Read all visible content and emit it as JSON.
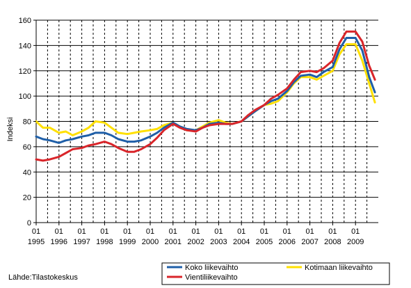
{
  "chart_data": {
    "type": "line",
    "ylabel": "Indeksi",
    "ylim": [
      0,
      160
    ],
    "yticks": [
      0,
      20,
      40,
      60,
      80,
      100,
      120,
      140,
      160
    ],
    "xticks": [
      {
        "year": 1995,
        "top": "01",
        "bottom": "1995"
      },
      {
        "year": 1996,
        "top": "01",
        "bottom": "1996"
      },
      {
        "year": 1997,
        "top": "01",
        "bottom": "1997"
      },
      {
        "year": 1998,
        "top": "01",
        "bottom": "1998"
      },
      {
        "year": 1999,
        "top": "01",
        "bottom": "1999"
      },
      {
        "year": 2000,
        "top": "01",
        "bottom": "2000"
      },
      {
        "year": 2001,
        "top": "01",
        "bottom": "2001"
      },
      {
        "year": 2002,
        "top": "01",
        "bottom": "2002"
      },
      {
        "year": 2003,
        "top": "01",
        "bottom": "2003"
      },
      {
        "year": 2004,
        "top": "01",
        "bottom": "2004"
      },
      {
        "year": 2005,
        "top": "01",
        "bottom": "2005"
      },
      {
        "year": 2006,
        "top": "01",
        "bottom": "2006"
      },
      {
        "year": 2007,
        "top": "01",
        "bottom": "2007"
      },
      {
        "year": 2008,
        "top": "01",
        "bottom": "2008"
      },
      {
        "year": 2009,
        "top": "01",
        "bottom": "2009"
      }
    ],
    "xlim": [
      1995.0,
      2010.0
    ],
    "grid": {
      "horizontal": true,
      "vertical_dashed": true
    },
    "legend_position": "bottom-right",
    "series": [
      {
        "name": "Kotimaan liikevaihto",
        "color": "#ffe000",
        "points": [
          [
            1995.0,
            80
          ],
          [
            1995.3,
            75
          ],
          [
            1995.6,
            75
          ],
          [
            1996.0,
            71
          ],
          [
            1996.3,
            72
          ],
          [
            1996.6,
            69
          ],
          [
            1997.0,
            72
          ],
          [
            1997.3,
            75
          ],
          [
            1997.6,
            80
          ],
          [
            1998.0,
            79
          ],
          [
            1998.3,
            75
          ],
          [
            1998.6,
            71
          ],
          [
            1999.0,
            70
          ],
          [
            1999.3,
            71
          ],
          [
            1999.6,
            72
          ],
          [
            2000.0,
            73
          ],
          [
            2000.3,
            74
          ],
          [
            2000.6,
            77
          ],
          [
            2001.0,
            79
          ],
          [
            2001.3,
            76
          ],
          [
            2001.6,
            73
          ],
          [
            2002.0,
            73
          ],
          [
            2002.3,
            76
          ],
          [
            2002.6,
            79
          ],
          [
            2003.0,
            81
          ],
          [
            2003.3,
            79
          ],
          [
            2003.6,
            78
          ],
          [
            2004.0,
            80
          ],
          [
            2004.3,
            84
          ],
          [
            2004.6,
            88
          ],
          [
            2005.0,
            93
          ],
          [
            2005.3,
            94
          ],
          [
            2005.6,
            96
          ],
          [
            2006.0,
            103
          ],
          [
            2006.3,
            110
          ],
          [
            2006.6,
            115
          ],
          [
            2007.0,
            115
          ],
          [
            2007.3,
            113
          ],
          [
            2007.6,
            116
          ],
          [
            2008.0,
            120
          ],
          [
            2008.3,
            133
          ],
          [
            2008.6,
            141
          ],
          [
            2009.0,
            141
          ],
          [
            2009.3,
            128
          ],
          [
            2009.6,
            110
          ],
          [
            2009.85,
            95
          ]
        ]
      },
      {
        "name": "Koko liikevaihto",
        "color": "#1f5fa8",
        "points": [
          [
            1995.0,
            68
          ],
          [
            1995.3,
            66
          ],
          [
            1995.6,
            65
          ],
          [
            1996.0,
            63
          ],
          [
            1996.3,
            65
          ],
          [
            1996.6,
            66
          ],
          [
            1997.0,
            68
          ],
          [
            1997.3,
            69
          ],
          [
            1997.6,
            71
          ],
          [
            1998.0,
            71
          ],
          [
            1998.3,
            69
          ],
          [
            1998.6,
            66
          ],
          [
            1999.0,
            64
          ],
          [
            1999.3,
            64
          ],
          [
            1999.6,
            65
          ],
          [
            2000.0,
            68
          ],
          [
            2000.3,
            71
          ],
          [
            2000.6,
            75
          ],
          [
            2001.0,
            79
          ],
          [
            2001.3,
            76
          ],
          [
            2001.6,
            74
          ],
          [
            2002.0,
            73
          ],
          [
            2002.3,
            75
          ],
          [
            2002.6,
            78
          ],
          [
            2003.0,
            79
          ],
          [
            2003.3,
            78
          ],
          [
            2003.6,
            78
          ],
          [
            2004.0,
            80
          ],
          [
            2004.3,
            84
          ],
          [
            2004.6,
            88
          ],
          [
            2005.0,
            93
          ],
          [
            2005.3,
            96
          ],
          [
            2005.6,
            98
          ],
          [
            2006.0,
            104
          ],
          [
            2006.3,
            111
          ],
          [
            2006.6,
            116
          ],
          [
            2007.0,
            117
          ],
          [
            2007.3,
            115
          ],
          [
            2007.6,
            119
          ],
          [
            2008.0,
            123
          ],
          [
            2008.3,
            137
          ],
          [
            2008.6,
            146
          ],
          [
            2009.0,
            146
          ],
          [
            2009.3,
            136
          ],
          [
            2009.6,
            115
          ],
          [
            2009.85,
            103
          ]
        ]
      },
      {
        "name": "Vientiliikevaihto",
        "color": "#d9252a",
        "points": [
          [
            1995.0,
            50
          ],
          [
            1995.3,
            49
          ],
          [
            1995.6,
            50
          ],
          [
            1996.0,
            52
          ],
          [
            1996.3,
            55
          ],
          [
            1996.6,
            58
          ],
          [
            1997.0,
            59
          ],
          [
            1997.3,
            61
          ],
          [
            1997.6,
            62
          ],
          [
            1998.0,
            64
          ],
          [
            1998.3,
            62
          ],
          [
            1998.6,
            59
          ],
          [
            1999.0,
            56
          ],
          [
            1999.3,
            56
          ],
          [
            1999.6,
            58
          ],
          [
            2000.0,
            62
          ],
          [
            2000.3,
            67
          ],
          [
            2000.6,
            73
          ],
          [
            2001.0,
            78
          ],
          [
            2001.3,
            75
          ],
          [
            2001.6,
            73
          ],
          [
            2002.0,
            72
          ],
          [
            2002.3,
            75
          ],
          [
            2002.6,
            77
          ],
          [
            2003.0,
            78
          ],
          [
            2003.3,
            78
          ],
          [
            2003.6,
            78
          ],
          [
            2004.0,
            80
          ],
          [
            2004.3,
            85
          ],
          [
            2004.6,
            89
          ],
          [
            2005.0,
            93
          ],
          [
            2005.3,
            98
          ],
          [
            2005.6,
            101
          ],
          [
            2006.0,
            106
          ],
          [
            2006.3,
            113
          ],
          [
            2006.6,
            119
          ],
          [
            2007.0,
            120
          ],
          [
            2007.3,
            119
          ],
          [
            2007.6,
            122
          ],
          [
            2008.0,
            128
          ],
          [
            2008.3,
            142
          ],
          [
            2008.6,
            151
          ],
          [
            2009.0,
            151
          ],
          [
            2009.3,
            143
          ],
          [
            2009.6,
            124
          ],
          [
            2009.85,
            113
          ]
        ]
      }
    ],
    "legend": [
      {
        "label": "Koko liikevaihto",
        "color": "#1f5fa8"
      },
      {
        "label": "Kotimaan liikevaihto",
        "color": "#ffe000"
      },
      {
        "label": "Vientiliikevaihto",
        "color": "#d9252a"
      }
    ],
    "source": "Lähde:Tilastokeskus"
  }
}
